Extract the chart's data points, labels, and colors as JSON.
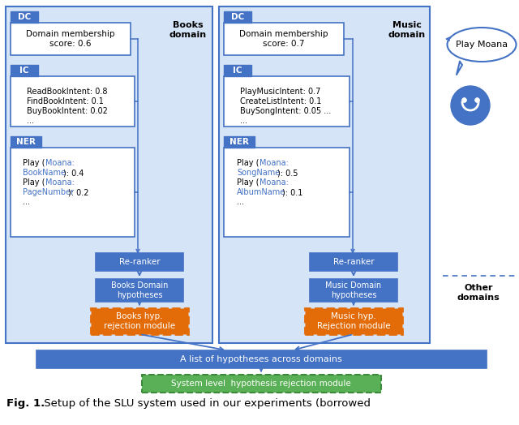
{
  "bg_color": "#ffffff",
  "title_bold": "Fig. 1.",
  "title_rest": " Setup of the SLU system used in our experiments (borrowed",
  "books_domain_label": "Books\ndomain",
  "music_domain_label": "Music\ndomain",
  "other_domains_label": "Other\ndomains",
  "dc_label": "DC",
  "ic_label": "IC",
  "ner_label": "NER",
  "books_dc_text": "Domain membership\nscore: 0.6",
  "music_dc_text": "Domain membership\nscore: 0.7",
  "books_ic_line1": "ReadBookIntent: 0.8",
  "books_ic_line2": "FindBookIntent: 0.1",
  "books_ic_line3": "BuyBookIntent: 0.02",
  "books_ic_dots": "...",
  "music_ic_line1": "PlayMusicIntent: 0.7",
  "music_ic_line2": "CreateListIntent: 0.1",
  "music_ic_line3": "BuySongIntent: 0.05 ...",
  "reranker_text": "Re-ranker",
  "books_hyp_text": "Books Domain\nhypotheses",
  "music_hyp_text": "Music Domain\nhypotheses",
  "books_rejection_text": "Books hyp.\nrejection module",
  "music_rejection_text": "Music hyp.\nRejection module",
  "list_hyp_text": "A list of hypotheses across domains",
  "system_rejection_text": "System level  hypothesis rejection module",
  "play_moana_text": "Play Moana",
  "blue_dark": "#2E5FA3",
  "blue_mid": "#4472C4",
  "blue_light_fill": "#D6E4F7",
  "blue_box_fill": "#4472C4",
  "orange_color": "#E36C09",
  "green_color": "#5AB056",
  "moana_color": "#4472C4",
  "outer_border": "#4472C4",
  "white": "#ffffff",
  "black": "#000000"
}
